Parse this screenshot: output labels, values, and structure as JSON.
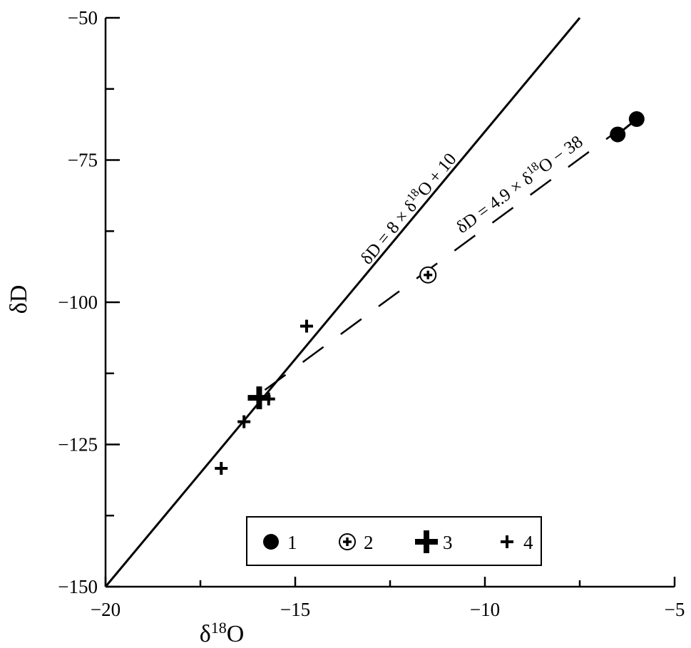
{
  "chart_data": {
    "type": "scatter",
    "title": "",
    "xlabel": "δ18O",
    "xlabel_main": "δ",
    "xlabel_sup": "18",
    "xlabel_tail": "O",
    "ylabel": "δD",
    "xlim": [
      -20,
      -5
    ],
    "ylim": [
      -150,
      -50
    ],
    "x_ticks": [
      -20,
      -15,
      -10,
      -5
    ],
    "x_tick_labels": [
      "−20",
      "−15",
      "−10",
      "−5"
    ],
    "y_ticks": [
      -150,
      -125,
      -100,
      -75,
      -50
    ],
    "y_tick_labels": [
      "−150",
      "−125",
      "−100",
      "−75",
      "−50"
    ],
    "x_minor_ticks": [
      -17.5,
      -12.5,
      -7.5
    ],
    "y_minor_ticks": [
      -137.5,
      -112.5,
      -87.5,
      -62.5
    ],
    "grid": false,
    "legend_position": "bottom-center",
    "lines": [
      {
        "label_text": "δD = 8 × δ18O + 10",
        "label_parts": [
          "δD = 8 × δ",
          "18",
          "O + 10"
        ],
        "slope": 8,
        "intercept": 10,
        "style": "solid",
        "x_range": [
          -20,
          -7.5
        ]
      },
      {
        "label_text": "δD = 4.9 × δ18O − 38",
        "label_parts": [
          "δD = 4.9 × δ",
          "18",
          "O − 38"
        ],
        "slope": 4.9,
        "intercept": -38,
        "style": "dashed",
        "x_range": [
          -15.8,
          -6.6
        ]
      }
    ],
    "series": [
      {
        "name": "1",
        "marker": "filled-circle",
        "connected": true,
        "points": [
          [
            -6.5,
            -70.5
          ],
          [
            -6.0,
            -67.8
          ]
        ]
      },
      {
        "name": "2",
        "marker": "circle-plus",
        "connected": false,
        "points": [
          [
            -11.5,
            -95.2
          ]
        ]
      },
      {
        "name": "3",
        "marker": "large-plus",
        "connected": false,
        "points": [
          [
            -15.95,
            -116.8
          ]
        ]
      },
      {
        "name": "4",
        "marker": "small-plus",
        "connected": false,
        "points": [
          [
            -14.7,
            -104.2
          ],
          [
            -15.7,
            -117.0
          ],
          [
            -16.35,
            -121.0
          ],
          [
            -16.95,
            -129.2
          ]
        ]
      }
    ]
  },
  "legend": {
    "items": [
      {
        "label": "1",
        "marker": "filled-circle"
      },
      {
        "label": "2",
        "marker": "circle-plus"
      },
      {
        "label": "3",
        "marker": "large-plus"
      },
      {
        "label": "4",
        "marker": "small-plus"
      }
    ]
  }
}
